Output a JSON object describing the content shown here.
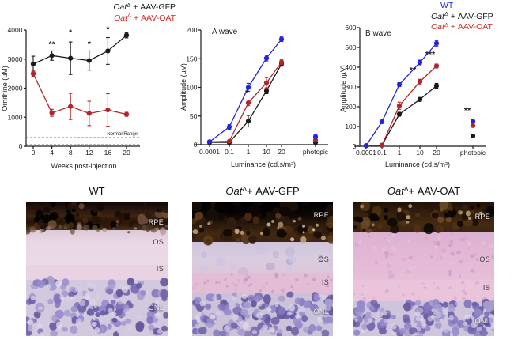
{
  "chart_data": [
    {
      "type": "line",
      "id": "ornithine",
      "title": "",
      "ylabel": "Ornithine (uM)",
      "xlabel": "Weeks post-injection",
      "xticks": [
        0,
        4,
        8,
        12,
        16,
        20
      ],
      "ylim": [
        0,
        4000
      ],
      "yticks": [
        0,
        1000,
        2000,
        3000,
        4000
      ],
      "normal_range": {
        "label": "Normal Range",
        "high": 300,
        "low": 55
      },
      "legend": [
        {
          "color": "#1a1a1a",
          "parts": [
            {
              "t": "Oat",
              "s": "i"
            },
            {
              "t": "Δ",
              "s": "sup"
            },
            {
              "t": " + AAV-GFP",
              "s": ""
            }
          ]
        },
        {
          "color": "#d12b27",
          "parts": [
            {
              "t": "Oat",
              "s": "i"
            },
            {
              "t": "Δ",
              "s": "sup"
            },
            {
              "t": " + AAV-OAT",
              "s": ""
            }
          ]
        }
      ],
      "series": [
        {
          "name": "OatD + AAV-GFP",
          "color": "#1a1a1a",
          "x": [
            0,
            4,
            8,
            12,
            16,
            20
          ],
          "values": [
            2830,
            3120,
            3030,
            2950,
            3280,
            3820
          ],
          "errors": [
            270,
            160,
            560,
            330,
            460,
            90
          ]
        },
        {
          "name": "OatD + AAV-OAT",
          "color": "#b0262c",
          "x": [
            0,
            4,
            8,
            12,
            16,
            20
          ],
          "values": [
            2500,
            1150,
            1370,
            1130,
            1250,
            1100
          ],
          "errors": [
            90,
            120,
            450,
            420,
            560,
            70
          ]
        }
      ],
      "annotations": [
        {
          "x": 4,
          "y": 3420,
          "text": "**"
        },
        {
          "x": 8,
          "y": 3820,
          "text": "*"
        },
        {
          "x": 12,
          "y": 3430,
          "text": "*"
        },
        {
          "x": 16,
          "y": 3930,
          "text": "*"
        }
      ]
    },
    {
      "type": "line",
      "id": "a-wave",
      "title": "A wave",
      "ylabel": "Amplitude (µV)",
      "xlabel": "Luminance (cd.s/m²)",
      "categories": [
        "0.0001",
        "0.1",
        "1",
        "10",
        "20"
      ],
      "photopic_label": "photopic",
      "ylim": [
        0,
        200
      ],
      "yticks": [
        0,
        50,
        100,
        150,
        200
      ],
      "series": [
        {
          "name": "OatD + AAV-GFP",
          "color": "#1a1a1a",
          "values": [
            4,
            4,
            41,
            94,
            141
          ],
          "errors": [
            2,
            2,
            10,
            5,
            4
          ],
          "photopic": 4,
          "photopic_error": 2
        },
        {
          "name": "OatD + AAV-OAT",
          "color": "#b0262c",
          "values": [
            5,
            6,
            73,
            108,
            144
          ],
          "errors": [
            2,
            2,
            5,
            9,
            4
          ],
          "photopic": 8,
          "photopic_error": 2
        },
        {
          "name": "WT",
          "color": "#2424dd",
          "values": [
            5,
            31,
            100,
            151,
            184
          ],
          "errors": [
            2,
            4,
            7,
            5,
            4
          ],
          "photopic": 14,
          "photopic_error": 3
        }
      ],
      "annotations": [
        {
          "cat": 2,
          "y": 86,
          "text": "*",
          "dx": -2
        }
      ]
    },
    {
      "type": "line",
      "id": "b-wave",
      "title": "B wave",
      "ylabel": "Amplitude (µV)",
      "xlabel": "Luminance (cd.s/m²)",
      "categories": [
        "0.0001",
        "0.1",
        "1",
        "10",
        "20"
      ],
      "photopic_label": "photopic",
      "ylim": [
        0,
        600
      ],
      "yticks": [
        0,
        100,
        200,
        300,
        400,
        500,
        600
      ],
      "legend": [
        {
          "color": "#2424dd",
          "parts": [
            {
              "t": "WT",
              "s": ""
            }
          ]
        },
        {
          "color": "#1a1a1a",
          "parts": [
            {
              "t": "Oat",
              "s": "i"
            },
            {
              "t": "Δ",
              "s": "sup"
            },
            {
              "t": " + AAV-GFP",
              "s": ""
            }
          ]
        },
        {
          "color": "#d12b27",
          "parts": [
            {
              "t": "Oat",
              "s": "i"
            },
            {
              "t": "Δ",
              "s": "sup"
            },
            {
              "t": " + AAV-OAT",
              "s": ""
            }
          ]
        }
      ],
      "series": [
        {
          "name": "OatD + AAV-GFP",
          "color": "#1a1a1a",
          "values": [
            3,
            5,
            162,
            237,
            306
          ],
          "errors": [
            2,
            2,
            10,
            10,
            12
          ],
          "photopic": 52,
          "photopic_error": 4
        },
        {
          "name": "OatD + AAV-OAT",
          "color": "#b0262c",
          "values": [
            3,
            5,
            205,
            327,
            406
          ],
          "errors": [
            2,
            2,
            18,
            12,
            10
          ],
          "photopic": 105,
          "photopic_error": 5
        },
        {
          "name": "WT",
          "color": "#2424dd",
          "values": [
            3,
            124,
            312,
            424,
            521
          ],
          "errors": [
            2,
            6,
            10,
            12,
            14
          ],
          "photopic": 126,
          "photopic_error": 6
        }
      ],
      "annotations": [
        {
          "cat": 3,
          "y": 372,
          "text": "**",
          "dx": -9
        },
        {
          "cat": 4,
          "y": 452,
          "text": "***",
          "dx": -8
        },
        {
          "cat": 5,
          "y": 168,
          "text": "**",
          "dx": -7
        }
      ]
    }
  ],
  "panels": [
    {
      "title_parts": [
        {
          "t": "WT",
          "s": ""
        }
      ],
      "layers": [
        "RPE",
        "OS",
        "IS",
        "ONL"
      ]
    },
    {
      "title_parts": [
        {
          "t": "Oat",
          "s": "i"
        },
        {
          "t": "Δ",
          "s": "sup"
        },
        {
          "t": "+ AAV-GFP",
          "s": ""
        }
      ],
      "layers": [
        "RPE",
        "OS",
        "IS",
        "ONL"
      ]
    },
    {
      "title_parts": [
        {
          "t": "Oat",
          "s": "i"
        },
        {
          "t": "Δ",
          "s": "sup"
        },
        {
          "t": "+ AAV-OAT",
          "s": ""
        }
      ],
      "layers": [
        "RPE",
        "OS",
        "IS",
        "ONL"
      ]
    }
  ],
  "colors": {
    "wt_blue": "#2424dd",
    "gfp_black": "#1a1a1a",
    "oat_red": "#b0262c"
  }
}
